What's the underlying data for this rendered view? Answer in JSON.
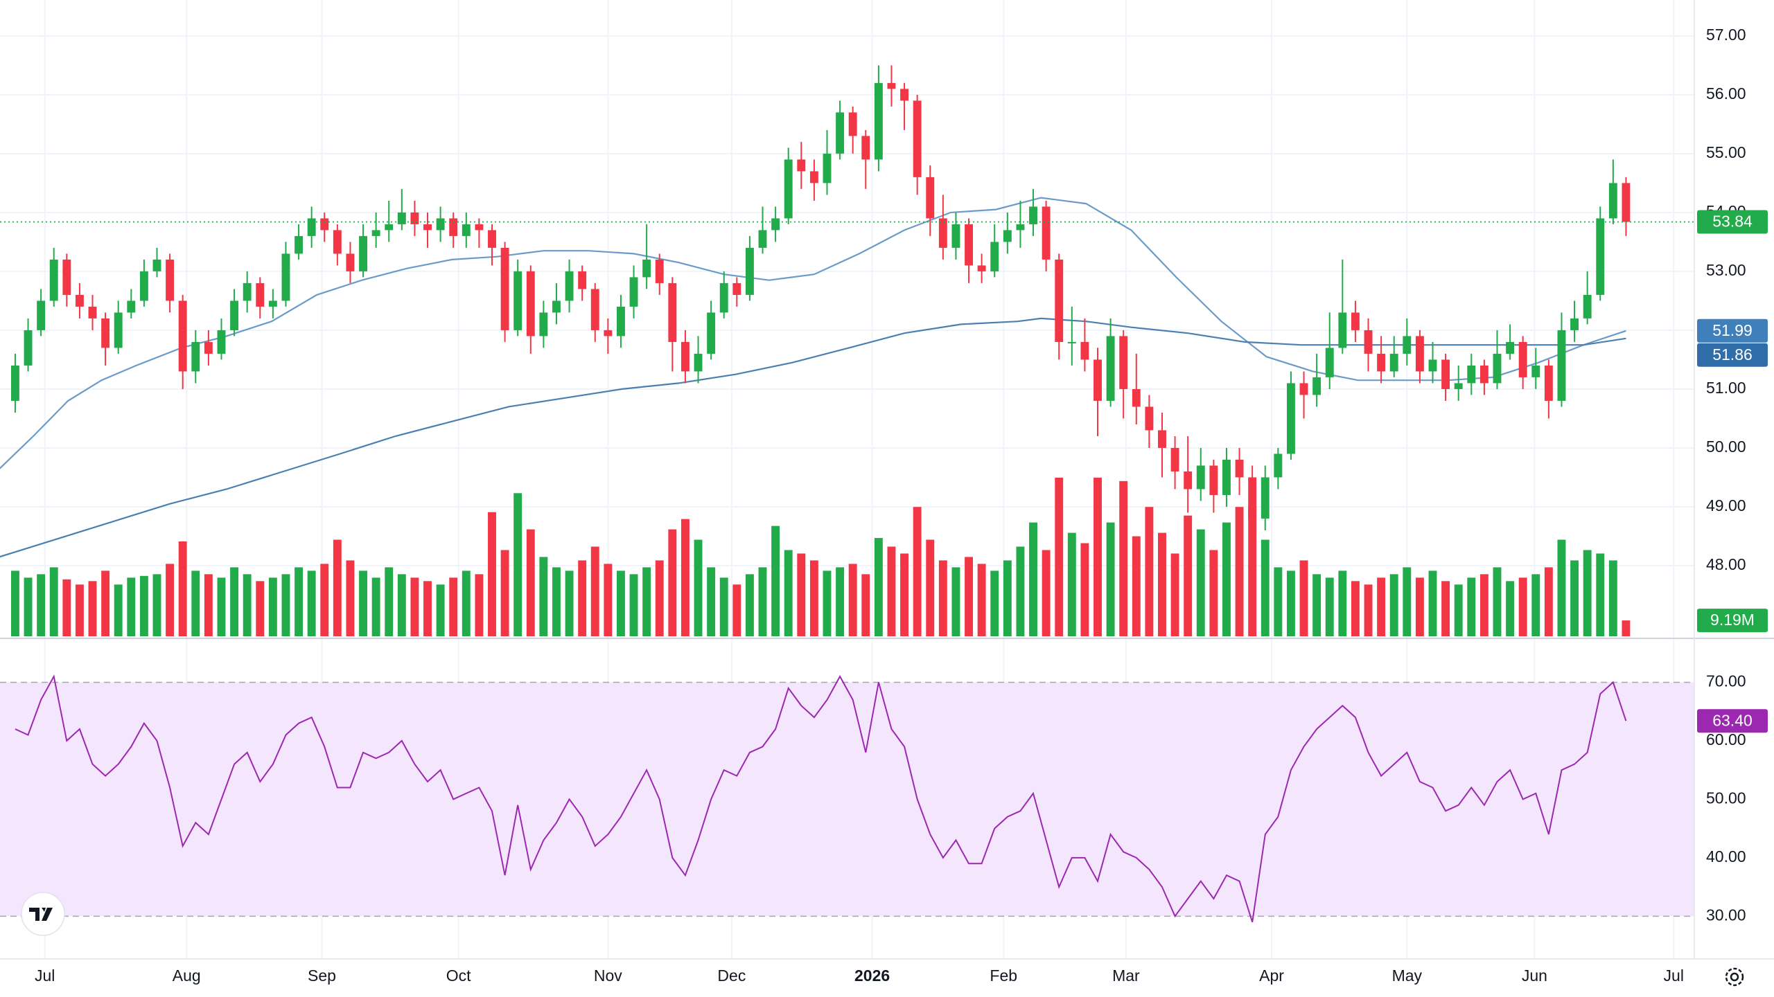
{
  "chart_data": {
    "type": "candlestick",
    "xlim": [
      -1.18,
      130.3
    ],
    "xticks": [
      {
        "value": 2.3,
        "label": "Jul"
      },
      {
        "value": 13.3,
        "label": "Aug"
      },
      {
        "value": 23.8,
        "label": "Sep"
      },
      {
        "value": 34.4,
        "label": "Oct"
      },
      {
        "value": 46.0,
        "label": "Nov"
      },
      {
        "value": 55.6,
        "label": "Dec"
      },
      {
        "value": 66.5,
        "label": "2026"
      },
      {
        "value": 76.7,
        "label": "Feb"
      },
      {
        "value": 86.2,
        "label": "Mar"
      },
      {
        "value": 97.5,
        "label": "Apr"
      },
      {
        "value": 108.0,
        "label": "May"
      },
      {
        "value": 117.9,
        "label": "Jun"
      },
      {
        "value": 128.7,
        "label": "Jul"
      }
    ],
    "ylim": [
      46.8,
      57.61
    ],
    "yticks": [
      {
        "value": 48,
        "label": "48.00"
      },
      {
        "value": 49,
        "label": "49.00"
      },
      {
        "value": 50,
        "label": "50.00"
      },
      {
        "value": 51,
        "label": "51.00"
      },
      {
        "value": 52,
        "label": "52.00"
      },
      {
        "value": 53,
        "label": "53.00"
      },
      {
        "value": 54,
        "label": "54.00"
      },
      {
        "value": 55,
        "label": "55.00"
      },
      {
        "value": 56,
        "label": "56.00"
      },
      {
        "value": 57,
        "label": "57.00"
      }
    ],
    "grid": true,
    "up_color": "#22ab4a",
    "down_color": "#f23645",
    "last_price_color": "#22ab4a",
    "open": [
      50.8,
      51.4,
      52.0,
      52.5,
      53.2,
      52.6,
      52.4,
      52.2,
      51.7,
      52.3,
      52.5,
      53.0,
      53.2,
      52.5,
      51.3,
      51.8,
      51.6,
      52.0,
      52.5,
      52.8,
      52.4,
      52.5,
      53.3,
      53.6,
      53.9,
      53.7,
      53.3,
      53.0,
      53.6,
      53.7,
      53.8,
      54.0,
      53.8,
      53.7,
      53.9,
      53.6,
      53.8,
      53.7,
      53.4,
      52.0,
      53.0,
      51.9,
      52.3,
      52.5,
      53.0,
      52.7,
      52.0,
      51.9,
      52.4,
      52.9,
      53.2,
      52.8,
      51.8,
      51.3,
      51.6,
      52.3,
      52.8,
      52.6,
      53.4,
      53.7,
      53.9,
      54.9,
      54.7,
      54.5,
      55.0,
      55.7,
      55.3,
      54.9,
      56.2,
      56.1,
      55.9,
      54.6,
      53.9,
      53.4,
      53.8,
      53.1,
      53.0,
      53.5,
      53.7,
      53.8,
      54.1,
      53.2,
      51.8,
      51.8,
      51.5,
      50.8,
      51.9,
      51.0,
      50.7,
      50.3,
      50.0,
      49.6,
      49.3,
      49.7,
      49.2,
      49.8,
      49.5,
      48.8,
      49.5,
      49.9,
      51.1,
      50.9,
      51.2,
      51.7,
      52.3,
      52.0,
      51.6,
      51.3,
      51.6,
      51.9,
      51.3,
      51.5,
      51.0,
      51.1,
      51.4,
      51.1,
      51.6,
      51.8,
      51.2,
      51.4,
      50.8,
      52.0,
      52.2,
      52.6,
      53.9,
      54.5
    ],
    "high": [
      51.6,
      52.2,
      52.7,
      53.4,
      53.3,
      52.8,
      52.6,
      52.3,
      52.5,
      52.7,
      53.2,
      53.4,
      53.3,
      52.6,
      52.0,
      52.0,
      52.2,
      52.7,
      53.0,
      52.9,
      52.7,
      53.5,
      53.8,
      54.1,
      54.0,
      53.8,
      53.5,
      53.8,
      54.0,
      54.2,
      54.4,
      54.2,
      54.0,
      54.1,
      54.0,
      54.0,
      53.9,
      53.8,
      53.5,
      53.2,
      53.1,
      52.5,
      52.8,
      53.2,
      53.1,
      52.8,
      52.2,
      52.6,
      53.1,
      53.8,
      53.3,
      52.9,
      52.0,
      51.9,
      52.5,
      53.0,
      52.9,
      53.6,
      54.1,
      54.1,
      55.1,
      55.2,
      54.9,
      55.4,
      55.9,
      55.8,
      55.4,
      56.5,
      56.5,
      56.2,
      56.0,
      54.8,
      54.3,
      54.0,
      53.9,
      53.3,
      53.8,
      54.0,
      54.2,
      54.4,
      54.2,
      53.3,
      52.4,
      52.2,
      51.7,
      52.2,
      52.0,
      51.6,
      50.9,
      50.6,
      50.2,
      50.2,
      50.0,
      49.8,
      50.0,
      50.0,
      49.7,
      49.7,
      50.0,
      51.3,
      51.3,
      51.6,
      52.3,
      53.2,
      52.5,
      52.2,
      51.9,
      51.9,
      52.2,
      52.0,
      51.8,
      51.6,
      51.4,
      51.6,
      51.5,
      52.0,
      52.1,
      51.9,
      51.7,
      51.5,
      52.3,
      52.5,
      53.0,
      54.1,
      54.9,
      54.6
    ],
    "low": [
      50.6,
      51.3,
      51.9,
      52.4,
      52.4,
      52.2,
      52.0,
      51.4,
      51.6,
      52.2,
      52.4,
      52.9,
      52.3,
      51.0,
      51.1,
      51.4,
      51.5,
      51.9,
      52.3,
      52.2,
      52.2,
      52.4,
      53.2,
      53.4,
      53.5,
      53.1,
      52.8,
      52.9,
      53.4,
      53.5,
      53.7,
      53.6,
      53.4,
      53.5,
      53.4,
      53.4,
      53.4,
      53.1,
      51.8,
      51.9,
      51.6,
      51.7,
      52.1,
      52.3,
      52.5,
      51.8,
      51.6,
      51.7,
      52.2,
      52.7,
      52.6,
      51.3,
      51.1,
      51.1,
      51.5,
      52.2,
      52.4,
      52.5,
      53.3,
      53.5,
      53.8,
      54.4,
      54.2,
      54.3,
      54.9,
      55.0,
      54.4,
      54.7,
      55.8,
      55.4,
      54.3,
      53.6,
      53.2,
      53.2,
      52.8,
      52.8,
      52.9,
      53.3,
      53.4,
      53.6,
      53.0,
      51.5,
      51.4,
      51.3,
      50.2,
      50.7,
      50.5,
      50.4,
      50.0,
      49.5,
      49.3,
      48.9,
      49.1,
      48.9,
      49.0,
      49.2,
      48.4,
      48.6,
      49.3,
      49.8,
      50.5,
      50.7,
      51.0,
      51.6,
      51.8,
      51.3,
      51.1,
      51.2,
      51.4,
      51.1,
      51.1,
      50.8,
      50.8,
      50.9,
      50.9,
      51.0,
      51.5,
      51.0,
      51.0,
      50.5,
      50.7,
      51.8,
      52.1,
      52.5,
      53.8,
      53.6
    ],
    "close": [
      51.4,
      52.0,
      52.5,
      53.2,
      52.6,
      52.4,
      52.2,
      51.7,
      52.3,
      52.5,
      53.0,
      53.2,
      52.5,
      51.3,
      51.8,
      51.6,
      52.0,
      52.5,
      52.8,
      52.4,
      52.5,
      53.3,
      53.6,
      53.9,
      53.7,
      53.3,
      53.0,
      53.6,
      53.7,
      53.8,
      54.0,
      53.8,
      53.7,
      53.9,
      53.6,
      53.8,
      53.7,
      53.4,
      52.0,
      53.0,
      51.9,
      52.3,
      52.5,
      53.0,
      52.7,
      52.0,
      51.9,
      52.4,
      52.9,
      53.2,
      52.8,
      51.8,
      51.3,
      51.6,
      52.3,
      52.8,
      52.6,
      53.4,
      53.7,
      53.9,
      54.9,
      54.7,
      54.5,
      55.0,
      55.7,
      55.3,
      54.9,
      56.2,
      56.1,
      55.9,
      54.6,
      53.9,
      53.4,
      53.8,
      53.1,
      53.0,
      53.5,
      53.7,
      53.8,
      54.1,
      53.2,
      51.8,
      51.8,
      51.5,
      50.8,
      51.9,
      51.0,
      50.7,
      50.3,
      50.0,
      49.6,
      49.3,
      49.7,
      49.2,
      49.8,
      49.5,
      48.8,
      49.5,
      49.9,
      51.1,
      50.9,
      51.2,
      51.7,
      52.3,
      52.0,
      51.6,
      51.3,
      51.6,
      51.9,
      51.3,
      51.5,
      51.0,
      51.1,
      51.4,
      51.1,
      51.6,
      51.8,
      51.2,
      51.4,
      50.8,
      52.0,
      52.2,
      52.6,
      53.9,
      54.5,
      53.84
    ],
    "volume": {
      "ylim": [
        0,
        369
      ],
      "values": [
        38,
        34,
        36,
        40,
        33,
        30,
        32,
        38,
        30,
        34,
        35,
        36,
        42,
        55,
        38,
        36,
        34,
        40,
        36,
        32,
        34,
        36,
        40,
        38,
        42,
        56,
        44,
        38,
        34,
        40,
        36,
        34,
        32,
        30,
        34,
        38,
        36,
        72,
        50,
        83,
        62,
        46,
        40,
        38,
        44,
        52,
        42,
        38,
        36,
        40,
        44,
        62,
        68,
        56,
        40,
        34,
        30,
        36,
        40,
        64,
        50,
        48,
        44,
        38,
        40,
        42,
        36,
        57,
        52,
        48,
        75,
        56,
        44,
        40,
        46,
        42,
        38,
        44,
        52,
        66,
        50,
        92,
        60,
        54,
        92,
        66,
        90,
        58,
        75,
        60,
        48,
        70,
        62,
        50,
        66,
        75,
        75,
        56,
        40,
        38,
        44,
        36,
        34,
        38,
        32,
        30,
        34,
        36,
        40,
        34,
        38,
        32,
        30,
        34,
        36,
        40,
        32,
        34,
        36,
        40,
        56,
        44,
        50,
        48,
        44,
        9.19
      ],
      "value_labels": {
        "125": "9.19M"
      }
    },
    "moving_averages": [
      {
        "color": "#6a9bc8",
        "label_color": "#3f7fba",
        "x": [
          -1.2,
          1.4,
          4.1,
          6.7,
          9.4,
          12.9,
          16.4,
          19.9,
          23.4,
          26.9,
          30.4,
          33.9,
          37.4,
          41.0,
          44.5,
          48.0,
          51.5,
          55.0,
          58.5,
          62.0,
          65.5,
          69.0,
          72.6,
          76.1,
          79.6,
          83.1,
          86.6,
          90.1,
          93.6,
          97.1,
          100.7,
          104.2,
          107.7,
          111.2,
          114.7,
          118.2,
          121.7,
          125
        ],
        "values": [
          49.65,
          50.2,
          50.8,
          51.15,
          51.4,
          51.7,
          51.9,
          52.15,
          52.6,
          52.85,
          53.05,
          53.2,
          53.25,
          53.35,
          53.35,
          53.3,
          53.15,
          52.95,
          52.85,
          52.95,
          53.3,
          53.7,
          54.0,
          54.05,
          54.25,
          54.15,
          53.7,
          52.9,
          52.15,
          51.55,
          51.3,
          51.15,
          51.15,
          51.15,
          51.2,
          51.45,
          51.75,
          51.99
        ]
      },
      {
        "color": "#4a7fb0",
        "label_color": "#2f6ea8",
        "x": [
          -1.2,
          3.2,
          7.6,
          12.0,
          16.4,
          20.8,
          25.2,
          29.5,
          33.9,
          38.3,
          42.7,
          47.1,
          51.5,
          55.9,
          60.3,
          64.7,
          69.0,
          73.4,
          77.8,
          79.6,
          83.1,
          86.6,
          91.0,
          95.4,
          99.8,
          104.2,
          108.6,
          113.0,
          117.3,
          121.7,
          125
        ],
        "values": [
          48.15,
          48.45,
          48.75,
          49.05,
          49.3,
          49.6,
          49.9,
          50.2,
          50.45,
          50.7,
          50.85,
          51.0,
          51.1,
          51.25,
          51.45,
          51.7,
          51.95,
          52.1,
          52.15,
          52.2,
          52.15,
          52.05,
          51.95,
          51.8,
          51.75,
          51.75,
          51.75,
          51.75,
          51.75,
          51.75,
          51.86
        ]
      }
    ],
    "rsi": {
      "color": "#9c27b0",
      "band_color": "#f4e6fd",
      "band": [
        30,
        70
      ],
      "ylim": [
        22.7,
        76.8
      ],
      "yticks": [
        {
          "value": 30,
          "label": "30.00"
        },
        {
          "value": 40,
          "label": "40.00"
        },
        {
          "value": 50,
          "label": "50.00"
        },
        {
          "value": 60,
          "label": "60.00"
        },
        {
          "value": 70,
          "label": "70.00"
        }
      ],
      "values": [
        62,
        61,
        67,
        71,
        60,
        62,
        56,
        54,
        56,
        59,
        63,
        60,
        52,
        42,
        46,
        44,
        50,
        56,
        58,
        53,
        56,
        61,
        63,
        64,
        59,
        52,
        52,
        58,
        57,
        58,
        60,
        56,
        53,
        55,
        50,
        51,
        52,
        48,
        37,
        49,
        38,
        43,
        46,
        50,
        47,
        42,
        44,
        47,
        51,
        55,
        50,
        40,
        37,
        43,
        50,
        55,
        54,
        58,
        59,
        62,
        69,
        66,
        64,
        67,
        71,
        67,
        58,
        70,
        62,
        59,
        50,
        44,
        40,
        43,
        39,
        39,
        45,
        47,
        48,
        51,
        43,
        35,
        40,
        40,
        36,
        44,
        41,
        40,
        38,
        35,
        30,
        33,
        36,
        33,
        37,
        36,
        29,
        44,
        47,
        55,
        59,
        62,
        64,
        66,
        64,
        58,
        54,
        56,
        58,
        53,
        52,
        48,
        49,
        52,
        49,
        53,
        55,
        50,
        51,
        44,
        55,
        56,
        58,
        68,
        70,
        63.4
      ],
      "value_labels": {
        "125": "63.40"
      }
    }
  }
}
